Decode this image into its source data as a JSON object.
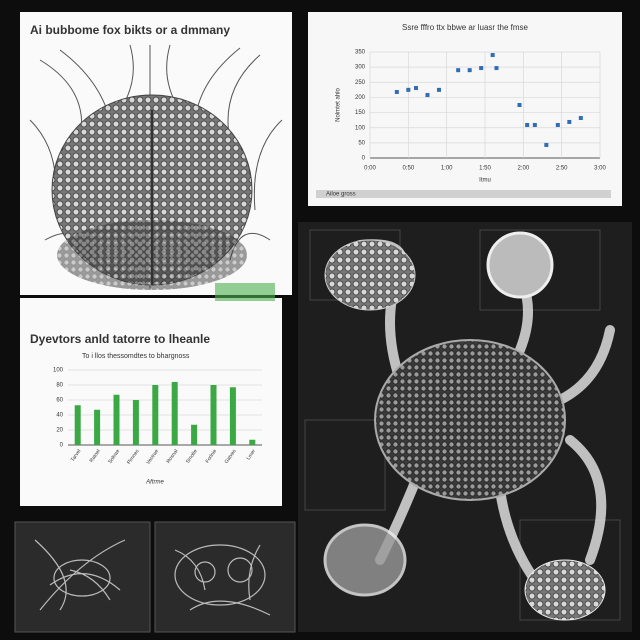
{
  "illustration": {
    "title": "Ai bubbome fox bikts or a dmmany"
  },
  "scatter_chart": {
    "type": "scatter",
    "title": "Ssre fffro ttx bbwe ar luasr the fmse",
    "x_label": "Itmu",
    "y_label": "Nolmtet ahlo",
    "footer": "Ailoe gross",
    "color": "#2f6db5",
    "x": [
      0.7,
      1.0,
      1.2,
      1.5,
      1.8,
      2.3,
      2.6,
      2.9,
      3.2,
      3.3,
      3.9,
      4.1,
      4.3,
      4.6,
      4.9,
      5.2,
      5.5
    ],
    "values": [
      218,
      225,
      231,
      208,
      225,
      290,
      290,
      297,
      340,
      297,
      175,
      109,
      109,
      43,
      109,
      119,
      132
    ],
    "xlim": [
      0,
      6
    ],
    "xticks": [
      {
        "value": 0,
        "label": "0:00"
      },
      {
        "value": 1,
        "label": "0:50"
      },
      {
        "value": 2,
        "label": "1:00"
      },
      {
        "value": 3,
        "label": "1:50"
      },
      {
        "value": 4,
        "label": "2:00"
      },
      {
        "value": 5,
        "label": "2:50"
      },
      {
        "value": 6,
        "label": "3:00"
      }
    ],
    "ylim": [
      0,
      350
    ],
    "yticks": [
      0,
      50,
      100,
      150,
      200,
      250,
      300,
      350
    ],
    "grid": true
  },
  "bar_chart": {
    "type": "bar",
    "title": "Dyevtors anld tatorre to lheanle",
    "subtitle": "To i llos thessomdtes to bhargnoss",
    "x_label": "Aftrme",
    "color": "#3aa843",
    "categories": [
      "Tarvel",
      "Ratoel",
      "Soltrae",
      "Pimnes",
      "Vectrae",
      "Rosnal",
      "Smolte",
      "Forlnie",
      "Gatves",
      "Lmer"
    ],
    "values": [
      53,
      47,
      67,
      60,
      80,
      84,
      27,
      80,
      77,
      7
    ],
    "ylim": [
      0,
      100
    ],
    "yticks": [
      0,
      20,
      40,
      60,
      80,
      100
    ],
    "grid": true
  }
}
